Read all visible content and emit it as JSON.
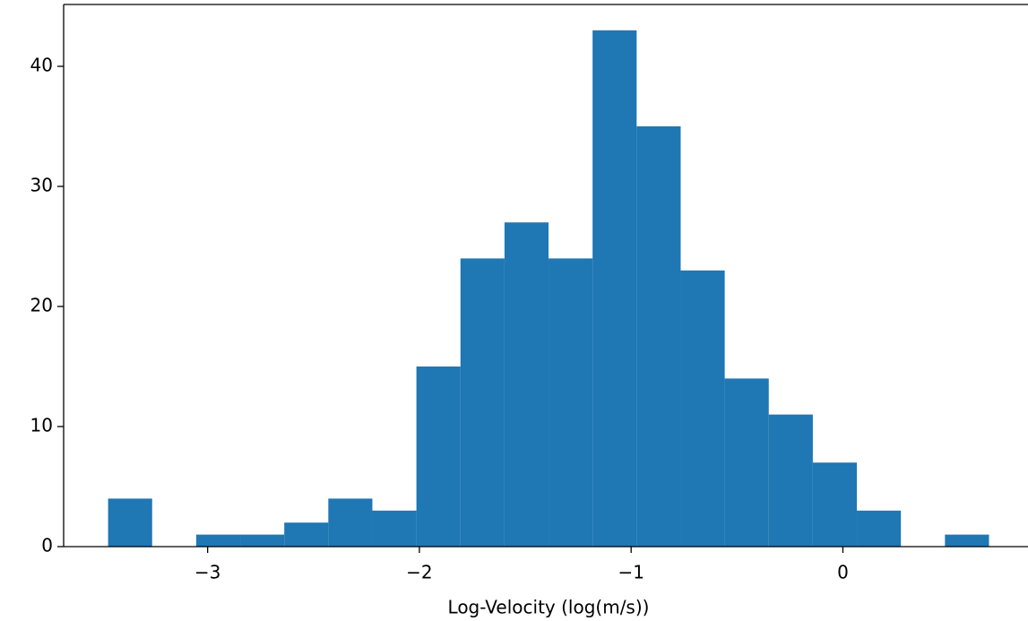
{
  "chart_data": {
    "type": "histogram",
    "x_label": "Log-Velocity (log(m/s))",
    "bins": [
      -3.47,
      -3.262,
      -3.054,
      -2.846,
      -2.638,
      -2.43,
      -2.222,
      -2.014,
      -1.806,
      -1.598,
      -1.39,
      -1.182,
      -0.974,
      -0.766,
      -0.558,
      -0.35,
      -0.142,
      0.066,
      0.274,
      0.482,
      0.69
    ],
    "counts": [
      4,
      0,
      1,
      1,
      2,
      4,
      3,
      15,
      24,
      27,
      24,
      43,
      35,
      23,
      14,
      11,
      7,
      3,
      0,
      1
    ],
    "color": "#1f77b4",
    "xlim": [
      -3.68,
      0.87
    ],
    "ylim": [
      0,
      45.15
    ],
    "xticks": [
      {
        "value": -3,
        "label": "−3"
      },
      {
        "value": -2,
        "label": "−2"
      },
      {
        "value": -1,
        "label": "−1"
      },
      0
    ],
    "yticks": [
      0,
      10,
      20,
      30,
      40
    ]
  }
}
